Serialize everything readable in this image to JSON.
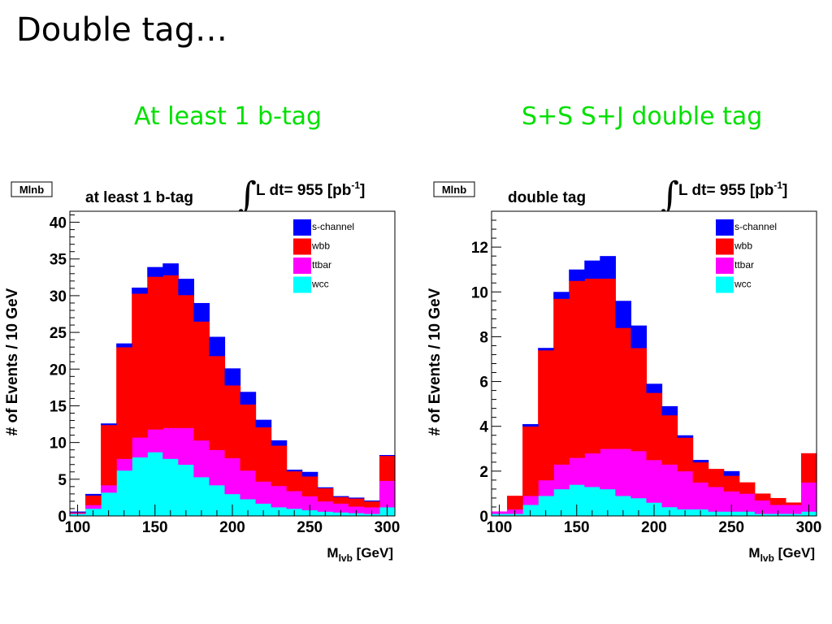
{
  "slide": {
    "title": "Double tag…",
    "subtitles": [
      "At least 1 b-tag",
      "S+S S+J double tag"
    ]
  },
  "colors": {
    "s-channel": "#0000ff",
    "wbb": "#ff0000",
    "ttbar": "#ff00ff",
    "wcc": "#00ffff",
    "subtitle": "#00e000"
  },
  "chart_data": [
    {
      "type": "bar",
      "stacked": true,
      "tag_label": "Mlnb",
      "title": "at least 1 b-tag",
      "lumi_label": "L dt= 955 [pb",
      "lumi_sup": "-1",
      "lumi_close": "]",
      "xlabel": "M",
      "xlabel_sub": "lvb",
      "xlabel_unit": " [GeV]",
      "ylabel": "# of Events / 10 GeV",
      "xlim": [
        95,
        305
      ],
      "ylim": [
        0,
        41.5
      ],
      "xticks": [
        100,
        150,
        200,
        250,
        300
      ],
      "yticks": [
        0,
        5,
        10,
        15,
        20,
        25,
        30,
        35,
        40
      ],
      "bin_edges": [
        95,
        105,
        115,
        125,
        135,
        145,
        155,
        165,
        175,
        185,
        195,
        205,
        215,
        225,
        235,
        245,
        255,
        265,
        275,
        285,
        295,
        305
      ],
      "series": [
        {
          "name": "wcc",
          "values": [
            0.3,
            1.0,
            3.2,
            6.2,
            8.0,
            8.7,
            7.8,
            7.0,
            5.3,
            4.2,
            3.0,
            2.3,
            1.7,
            1.2,
            1.0,
            0.8,
            0.6,
            0.5,
            0.4,
            0.3,
            1.2
          ]
        },
        {
          "name": "ttbar",
          "values": [
            0.1,
            0.5,
            1.0,
            1.6,
            2.7,
            3.1,
            4.2,
            5.0,
            5.0,
            4.8,
            4.9,
            3.9,
            3.0,
            2.9,
            2.4,
            1.9,
            1.4,
            1.2,
            0.9,
            0.9,
            3.6
          ]
        },
        {
          "name": "wbb",
          "values": [
            0.1,
            1.3,
            8.2,
            15.2,
            19.6,
            20.8,
            20.8,
            18.1,
            16.2,
            12.8,
            9.9,
            9.0,
            7.4,
            5.5,
            2.7,
            2.7,
            1.8,
            0.9,
            1.1,
            0.8,
            3.4
          ]
        },
        {
          "name": "s-channel",
          "values": [
            0.1,
            0.2,
            0.2,
            0.5,
            0.8,
            1.3,
            1.6,
            2.2,
            2.5,
            2.6,
            2.3,
            1.7,
            1.0,
            0.7,
            0.2,
            0.6,
            0.1,
            0.1,
            0.1,
            0.1,
            0.1
          ]
        }
      ],
      "legend_placement": "top-right",
      "legend": [
        "s-channel",
        "wbb",
        "ttbar",
        "wcc"
      ]
    },
    {
      "type": "bar",
      "stacked": true,
      "tag_label": "Mlnb",
      "title": "double tag",
      "lumi_label": "L dt= 955 [pb",
      "lumi_sup": "-1",
      "lumi_close": "]",
      "xlabel": "M",
      "xlabel_sub": "lvb",
      "xlabel_unit": " [GeV]",
      "ylabel": "# of Events / 10 GeV",
      "xlim": [
        95,
        305
      ],
      "ylim": [
        0,
        13.6
      ],
      "xticks": [
        100,
        150,
        200,
        250,
        300
      ],
      "yticks": [
        0,
        2,
        4,
        6,
        8,
        10,
        12
      ],
      "bin_edges": [
        95,
        105,
        115,
        125,
        135,
        145,
        155,
        165,
        175,
        185,
        195,
        205,
        215,
        225,
        235,
        245,
        255,
        265,
        275,
        285,
        295,
        305
      ],
      "series": [
        {
          "name": "wcc",
          "values": [
            0.1,
            0.1,
            0.5,
            0.9,
            1.2,
            1.4,
            1.3,
            1.2,
            0.9,
            0.8,
            0.6,
            0.4,
            0.3,
            0.3,
            0.2,
            0.2,
            0.2,
            0.1,
            0.1,
            0.1,
            0.2
          ]
        },
        {
          "name": "ttbar",
          "values": [
            0.1,
            0.2,
            0.4,
            0.7,
            1.1,
            1.2,
            1.5,
            1.8,
            2.1,
            2.1,
            1.9,
            1.9,
            1.7,
            1.2,
            1.1,
            0.9,
            0.8,
            0.6,
            0.4,
            0.4,
            1.3
          ]
        },
        {
          "name": "wbb",
          "values": [
            0.0,
            0.6,
            3.1,
            5.8,
            7.4,
            7.9,
            7.8,
            7.6,
            5.4,
            4.6,
            3.0,
            2.2,
            1.5,
            0.9,
            0.8,
            0.7,
            0.5,
            0.3,
            0.3,
            0.1,
            1.3
          ]
        },
        {
          "name": "s-channel",
          "values": [
            0.0,
            0.0,
            0.1,
            0.1,
            0.3,
            0.5,
            0.8,
            1.0,
            1.2,
            1.0,
            0.4,
            0.4,
            0.1,
            0.1,
            0.0,
            0.2,
            0.0,
            0.0,
            0.0,
            0.0,
            0.0
          ]
        }
      ],
      "legend_placement": "top-right",
      "legend": [
        "s-channel",
        "wbb",
        "ttbar",
        "wcc"
      ]
    }
  ]
}
